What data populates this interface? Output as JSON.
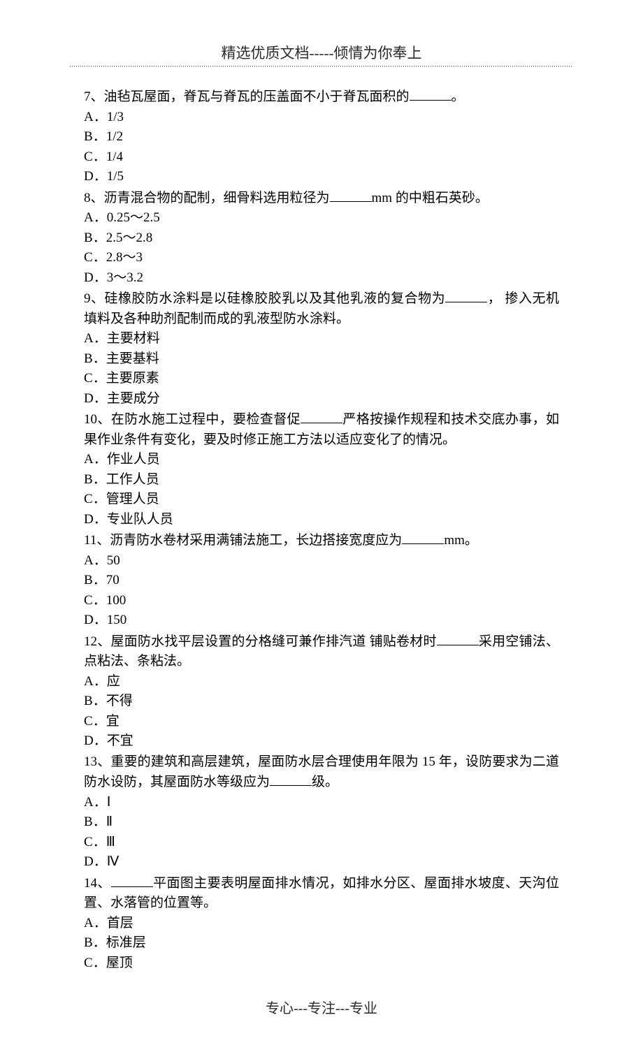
{
  "header": "精选优质文档-----倾情为你奉上",
  "footer": "专心---专注---专业",
  "questions": [
    {
      "num": "7",
      "text_before": "、油毡瓦屋面，脊瓦与脊瓦的压盖面不小于脊瓦面积的",
      "text_after": "。",
      "options": [
        {
          "label": "A",
          "text": "．1/3"
        },
        {
          "label": "B",
          "text": "．1/2"
        },
        {
          "label": "C",
          "text": "．1/4"
        },
        {
          "label": "D",
          "text": "．1/5"
        }
      ]
    },
    {
      "num": "8",
      "text_before": "、沥青混合物的配制，细骨料选用粒径为",
      "text_after": "mm 的中粗石英砂。",
      "options": [
        {
          "label": "A",
          "text": "．0.25～2.5"
        },
        {
          "label": "B",
          "text": "．2.5～2.8"
        },
        {
          "label": "C",
          "text": "．2.8～3"
        },
        {
          "label": "D",
          "text": "．3～3.2"
        }
      ]
    },
    {
      "num": "9",
      "text_before": "、硅橡胶防水涂料是以硅橡胶胶乳以及其他乳液的复合物为",
      "text_after": "， 掺入无机填料及各种助剂配制而成的乳液型防水涂料。",
      "options": [
        {
          "label": "A",
          "text": "．主要材料"
        },
        {
          "label": "B",
          "text": "．主要基料"
        },
        {
          "label": "C",
          "text": "．主要原素"
        },
        {
          "label": "D",
          "text": "．主要成分"
        }
      ]
    },
    {
      "num": "10",
      "text_before": "、在防水施工过程中，要检查督促",
      "text_after": "严格按操作规程和技术交底办事，如果作业条件有变化，要及时修正施工方法以适应变化了的情况。",
      "options": [
        {
          "label": "A",
          "text": "．作业人员"
        },
        {
          "label": "B",
          "text": "．工作人员"
        },
        {
          "label": "C",
          "text": "．管理人员"
        },
        {
          "label": "D",
          "text": "．专业队人员"
        }
      ]
    },
    {
      "num": "11",
      "text_before": "、沥青防水卷材采用满铺法施工，长边搭接宽度应为",
      "text_after": "mm。",
      "options": [
        {
          "label": "A",
          "text": "．50"
        },
        {
          "label": "B",
          "text": "．70"
        },
        {
          "label": "C",
          "text": "．100"
        },
        {
          "label": "D",
          "text": "．150"
        }
      ]
    },
    {
      "num": "12",
      "text_before": "、屋面防水找平层设置的分格缝可兼作排汽道 铺贴卷材时",
      "text_after": "采用空铺法、点粘法、条粘法。",
      "options": [
        {
          "label": "A",
          "text": "．应"
        },
        {
          "label": "B",
          "text": "．不得"
        },
        {
          "label": "C",
          "text": "．宜"
        },
        {
          "label": "D",
          "text": "．不宜"
        }
      ]
    },
    {
      "num": "13",
      "text_before": "、重要的建筑和高层建筑，屋面防水层合理使用年限为 15 年，设防要求为二道防水设防，其屋面防水等级应为",
      "text_after": "级。",
      "options": [
        {
          "label": "A",
          "text": "．Ⅰ"
        },
        {
          "label": "B",
          "text": "．Ⅱ"
        },
        {
          "label": "C",
          "text": "．Ⅲ"
        },
        {
          "label": "D",
          "text": "．Ⅳ"
        }
      ]
    },
    {
      "num": "14",
      "prefix": "、",
      "text_before": "",
      "text_after": "平面图主要表明屋面排水情况，如排水分区、屋面排水坡度、天沟位置、水落管的位置等。",
      "blank_first": true,
      "options": [
        {
          "label": "A",
          "text": "．首层"
        },
        {
          "label": "B",
          "text": "．标准层"
        },
        {
          "label": "C",
          "text": "．屋顶"
        }
      ]
    }
  ]
}
